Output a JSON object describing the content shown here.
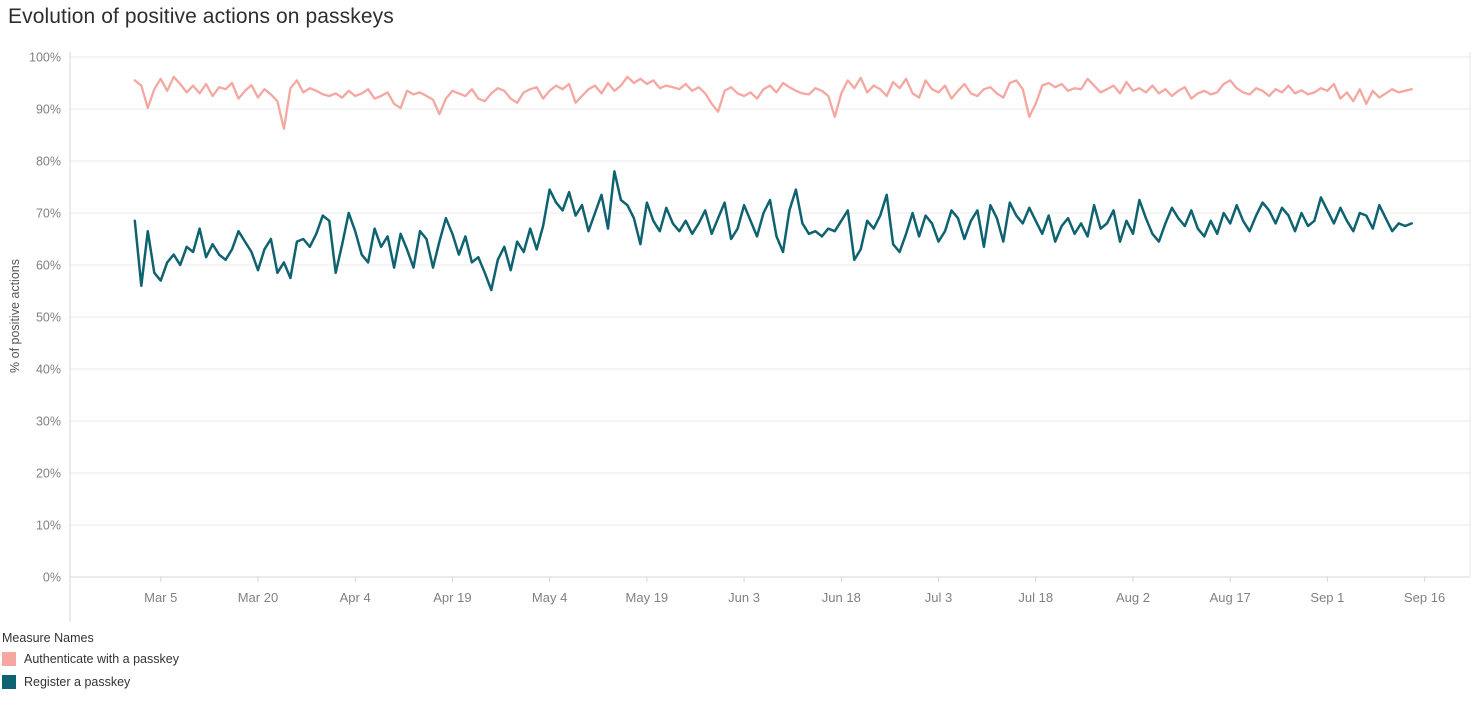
{
  "page": {
    "title": "Evolution of positive actions on passkeys"
  },
  "legend": {
    "title": "Measure Names",
    "items": [
      {
        "label": "Authenticate with a passkey",
        "color": "#f5a7a1"
      },
      {
        "label": "Register a passkey",
        "color": "#0f6270"
      }
    ]
  },
  "chart_data": {
    "type": "line",
    "title": "Evolution of positive actions on passkeys",
    "xlabel": "",
    "ylabel": "% of positive actions",
    "ylim": [
      0,
      100
    ],
    "y_tick_step": 10,
    "y_tick_labels": [
      "0%",
      "10%",
      "20%",
      "30%",
      "40%",
      "50%",
      "60%",
      "70%",
      "80%",
      "90%",
      "100%"
    ],
    "grid": true,
    "legend_position": "bottom-left",
    "x_unit": "day",
    "x_start_date": "Mar 1",
    "x_domain_days": [
      -10,
      206
    ],
    "x_ticks": [
      {
        "label": "Mar 5",
        "day": 4
      },
      {
        "label": "Mar 20",
        "day": 19
      },
      {
        "label": "Apr 4",
        "day": 34
      },
      {
        "label": "Apr 19",
        "day": 49
      },
      {
        "label": "May 4",
        "day": 64
      },
      {
        "label": "May 19",
        "day": 79
      },
      {
        "label": "Jun 3",
        "day": 94
      },
      {
        "label": "Jun 18",
        "day": 109
      },
      {
        "label": "Jul 3",
        "day": 124
      },
      {
        "label": "Jul 18",
        "day": 139
      },
      {
        "label": "Aug 2",
        "day": 154
      },
      {
        "label": "Aug 17",
        "day": 169
      },
      {
        "label": "Sep 1",
        "day": 184
      },
      {
        "label": "Sep 16",
        "day": 199
      }
    ],
    "series": [
      {
        "name": "Authenticate with a passkey",
        "color": "#f5a7a1",
        "start_day": 0,
        "values": [
          95.5,
          94.5,
          90.2,
          93.8,
          95.8,
          93.5,
          96.2,
          94.8,
          93.2,
          94.5,
          93.0,
          94.8,
          92.5,
          94.2,
          93.8,
          95.0,
          92.0,
          93.5,
          94.6,
          92.2,
          93.8,
          92.8,
          91.5,
          86.2,
          94.0,
          95.5,
          93.2,
          94.0,
          93.5,
          92.8,
          92.5,
          93.0,
          92.2,
          93.5,
          92.5,
          93.0,
          93.8,
          92.0,
          92.5,
          93.2,
          91.0,
          90.2,
          93.5,
          92.8,
          93.2,
          92.5,
          91.8,
          89.0,
          92.0,
          93.5,
          93.0,
          92.5,
          93.8,
          92.0,
          91.5,
          93.0,
          94.0,
          93.5,
          92.0,
          91.2,
          93.2,
          93.8,
          94.2,
          92.0,
          93.5,
          94.5,
          93.8,
          94.8,
          91.2,
          92.5,
          93.8,
          94.5,
          93.0,
          95.0,
          93.5,
          94.5,
          96.2,
          95.0,
          95.8,
          94.8,
          95.5,
          94.0,
          94.5,
          94.2,
          93.8,
          94.8,
          93.5,
          94.2,
          93.0,
          91.0,
          89.5,
          93.5,
          94.2,
          93.0,
          92.5,
          93.2,
          92.0,
          93.8,
          94.5,
          93.2,
          95.0,
          94.2,
          93.5,
          93.0,
          92.8,
          94.0,
          93.5,
          92.5,
          88.5,
          93.0,
          95.5,
          94.0,
          96.0,
          93.2,
          94.5,
          93.8,
          92.5,
          95.2,
          94.0,
          95.8,
          93.0,
          92.2,
          95.5,
          93.8,
          93.2,
          94.5,
          92.0,
          93.5,
          94.8,
          93.0,
          92.5,
          93.8,
          94.2,
          93.0,
          92.2,
          95.0,
          95.5,
          93.8,
          88.5,
          91.0,
          94.5,
          95.0,
          94.2,
          94.8,
          93.5,
          94.0,
          93.8,
          95.8,
          94.5,
          93.2,
          93.8,
          94.5,
          93.0,
          95.2,
          93.5,
          94.0,
          93.2,
          94.5,
          93.0,
          93.8,
          92.5,
          93.5,
          94.2,
          92.0,
          93.0,
          93.5,
          92.8,
          93.2,
          94.8,
          95.5,
          94.0,
          93.2,
          92.8,
          94.0,
          93.5,
          92.5,
          93.8,
          93.2,
          94.5,
          93.0,
          93.6,
          92.8,
          93.2,
          94.0,
          93.5,
          94.8,
          92.0,
          93.2,
          91.5,
          93.8,
          91.0,
          93.5,
          92.2,
          93.0,
          93.8,
          93.2,
          93.5,
          93.8
        ]
      },
      {
        "name": "Register a passkey",
        "color": "#0f6270",
        "start_day": 0,
        "values": [
          68.5,
          56.0,
          66.5,
          58.5,
          57.0,
          60.5,
          62.0,
          60.0,
          63.5,
          62.5,
          67.0,
          61.5,
          64.0,
          62.0,
          61.0,
          63.0,
          66.5,
          64.5,
          62.5,
          59.0,
          63.0,
          65.0,
          58.5,
          60.5,
          57.5,
          64.5,
          65.0,
          63.5,
          66.0,
          69.5,
          68.5,
          58.5,
          64.0,
          70.0,
          66.5,
          62.0,
          60.5,
          67.0,
          63.5,
          65.5,
          59.5,
          66.0,
          63.0,
          59.5,
          66.5,
          65.0,
          59.5,
          64.5,
          69.0,
          66.0,
          62.0,
          65.5,
          60.5,
          61.5,
          58.5,
          55.2,
          61.0,
          63.5,
          59.0,
          64.5,
          62.5,
          67.0,
          63.0,
          67.5,
          74.5,
          72.0,
          70.5,
          74.0,
          69.5,
          71.5,
          66.5,
          70.0,
          73.5,
          67.0,
          78.0,
          72.5,
          71.5,
          69.0,
          64.0,
          72.0,
          68.5,
          66.5,
          71.0,
          68.0,
          66.5,
          68.5,
          66.0,
          68.0,
          70.5,
          66.0,
          69.0,
          72.0,
          65.0,
          67.0,
          71.5,
          68.5,
          65.5,
          70.0,
          72.5,
          65.5,
          62.5,
          70.5,
          74.5,
          68.0,
          66.0,
          66.5,
          65.5,
          67.0,
          66.5,
          68.5,
          70.5,
          61.0,
          63.0,
          68.5,
          67.0,
          69.5,
          73.5,
          64.0,
          62.5,
          66.0,
          70.0,
          65.5,
          69.5,
          68.0,
          64.5,
          66.5,
          70.5,
          69.0,
          65.0,
          68.5,
          70.5,
          63.5,
          71.5,
          69.0,
          64.5,
          72.0,
          69.5,
          68.0,
          71.0,
          68.5,
          66.0,
          69.5,
          64.5,
          67.5,
          69.0,
          66.0,
          68.0,
          65.5,
          71.5,
          67.0,
          68.0,
          70.5,
          64.5,
          68.5,
          66.0,
          72.5,
          69.0,
          66.0,
          64.5,
          68.0,
          71.0,
          69.0,
          67.5,
          70.5,
          67.0,
          65.5,
          68.5,
          66.0,
          70.0,
          68.0,
          71.5,
          68.5,
          66.5,
          69.5,
          72.0,
          70.5,
          68.0,
          71.0,
          69.5,
          66.5,
          70.0,
          67.5,
          68.5,
          73.0,
          70.5,
          68.0,
          71.0,
          68.5,
          66.5,
          70.0,
          69.5,
          67.0,
          71.5,
          69.0,
          66.5,
          68.0,
          67.5,
          68.0
        ]
      }
    ]
  }
}
